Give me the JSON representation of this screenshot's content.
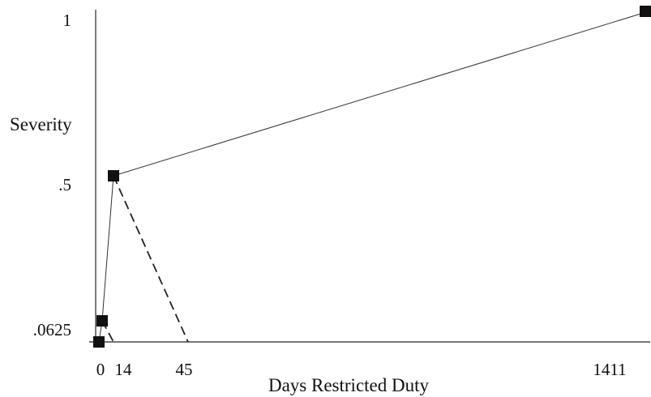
{
  "chart_data": {
    "type": "line",
    "xlabel": "Days Restricted Duty",
    "ylabel": "Severity",
    "x_ticks": [
      {
        "value": 0,
        "label": "0"
      },
      {
        "value": 14,
        "label": "14"
      },
      {
        "value": 45,
        "label": "45"
      },
      {
        "value": 1411,
        "label": "1411"
      }
    ],
    "y_ticks": [
      {
        "value": 0.0625,
        "label": ".0625"
      },
      {
        "value": 0.5,
        "label": ".5"
      },
      {
        "value": 1,
        "label": "1"
      }
    ],
    "points": [
      {
        "x": 0,
        "y": 0
      },
      {
        "x": 4,
        "y": 0.0625
      },
      {
        "x": 14,
        "y": 0.5
      },
      {
        "x": 1411,
        "y": 1
      }
    ],
    "solid_segments": [
      [
        {
          "x": 0,
          "y": 0
        },
        {
          "x": 4,
          "y": 0.0625
        }
      ],
      [
        {
          "x": 4,
          "y": 0.0625
        },
        {
          "x": 14,
          "y": 0.5
        }
      ],
      [
        {
          "x": 14,
          "y": 0.5
        },
        {
          "x": 1411,
          "y": 1
        }
      ]
    ],
    "dashed_segments": [
      [
        {
          "x": 4,
          "y": 0.0625
        },
        {
          "x": 14,
          "y": 0
        }
      ],
      [
        {
          "x": 14,
          "y": 0.5
        },
        {
          "x": 45,
          "y": 0
        }
      ]
    ],
    "grid": false,
    "legend": "none"
  }
}
